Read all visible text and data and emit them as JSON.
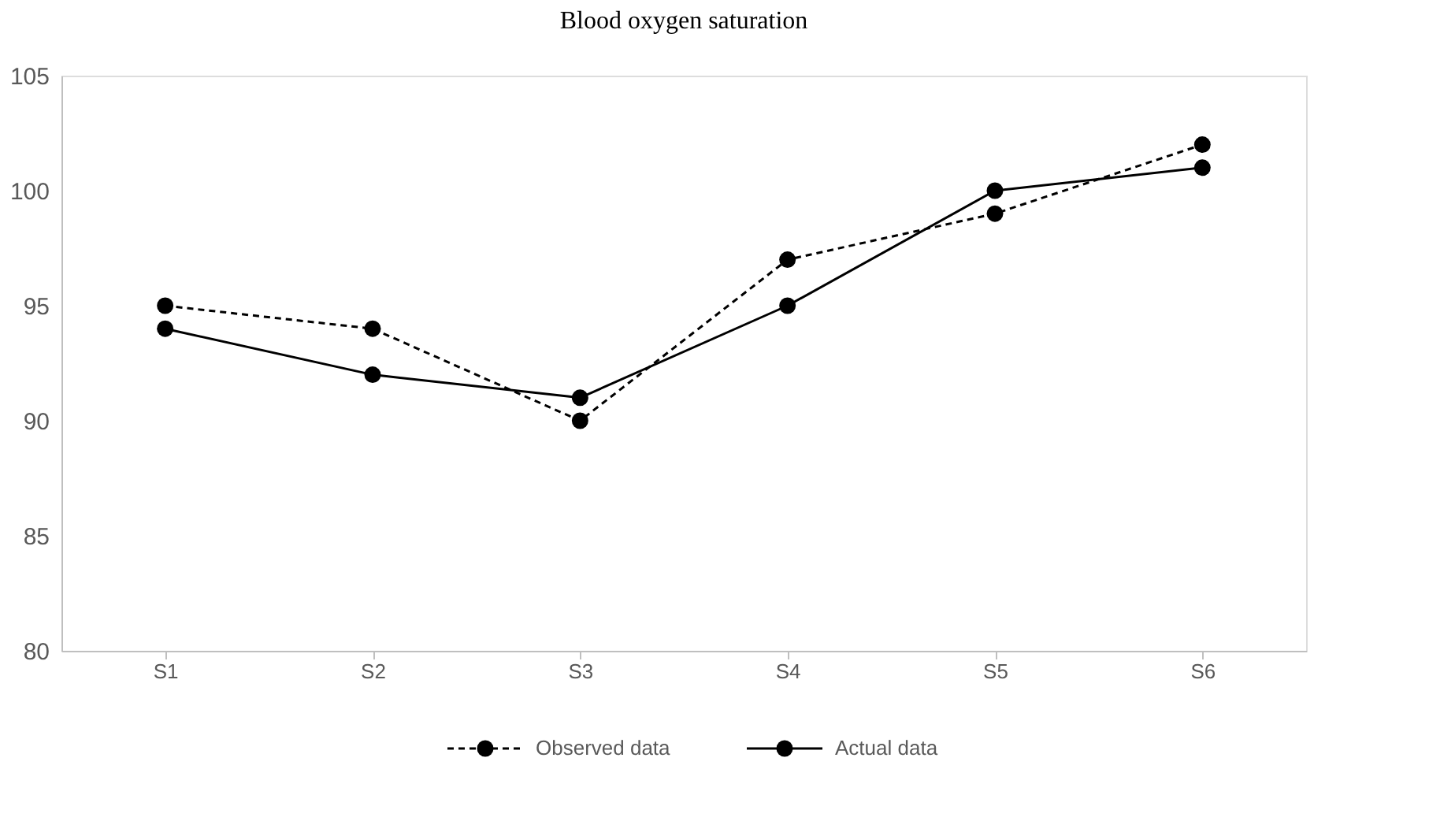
{
  "chart_data": {
    "type": "line",
    "title": "Blood oxygen saturation",
    "categories": [
      "S1",
      "S2",
      "S3",
      "S4",
      "S5",
      "S6"
    ],
    "series": [
      {
        "name": "Observed data",
        "color": "#000000",
        "line_style": "dashed",
        "values": [
          95,
          94,
          90,
          97,
          99,
          102
        ]
      },
      {
        "name": "Actual data",
        "color": "#000000",
        "line_style": "solid",
        "values": [
          94,
          92,
          91,
          95,
          100,
          101
        ]
      }
    ],
    "ylim": [
      80,
      105
    ],
    "yticks": [
      80,
      85,
      90,
      95,
      100,
      105
    ],
    "grid": false,
    "legend": "bottom",
    "marker": "circle"
  }
}
